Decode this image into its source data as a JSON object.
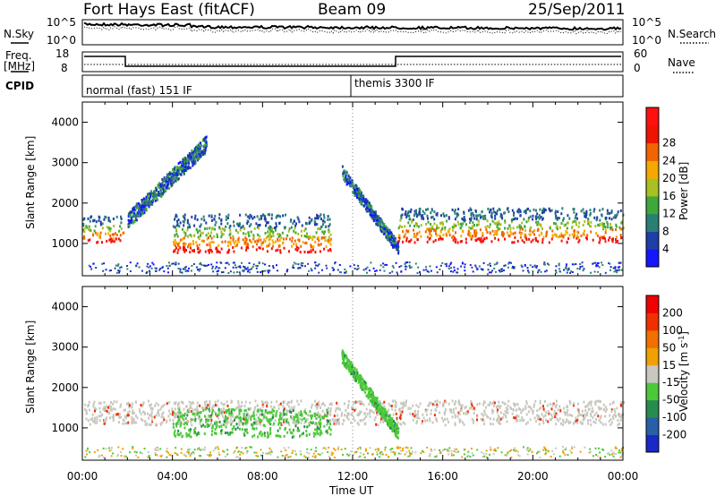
{
  "header": {
    "title": "Fort Hays East (fitACF)",
    "beam": "Beam 09",
    "date": "25/Sep/2011"
  },
  "top_panels": {
    "nsky_label": "N.Sky",
    "nsky_ticks": [
      "10^5",
      "10^0"
    ],
    "nsearch_label": "N.Search",
    "nsearch_ticks": [
      "10^5",
      "10^0"
    ],
    "freq_label": "Freq.",
    "freq_unit": "[MHz]",
    "freq_ticks": [
      "18",
      "8"
    ],
    "nave_label": "Nave",
    "nave_ticks": [
      "60",
      "0"
    ],
    "cpid_label": "CPID",
    "cpid_segments": [
      {
        "start_hour": 0,
        "label": "normal (fast) 151 IF"
      },
      {
        "start_hour": 12,
        "label": "themis 3300 IF"
      }
    ]
  },
  "chart_data": [
    {
      "type": "heatmap",
      "ylabel": "Slant Range [km]",
      "xlim": [
        0,
        24
      ],
      "ylim": [
        200,
        4500
      ],
      "yticks": [
        "1000",
        "2000",
        "3000",
        "4000"
      ],
      "colorbar": {
        "label": "Power [dB]",
        "ticks": [
          "4",
          "8",
          "12",
          "16",
          "20",
          "24",
          "28"
        ],
        "colors": [
          "#1515ff",
          "#1e3ea8",
          "#2a7f74",
          "#3ea83a",
          "#a8c020",
          "#f5a800",
          "#f26400",
          "#ee1400",
          "#ff1010"
        ]
      },
      "features": [
        {
          "name": "early echo band",
          "x": [
            0.0,
            1.8
          ],
          "y": [
            1050,
            1700
          ]
        },
        {
          "name": "rising band",
          "x": [
            2.0,
            5.5
          ],
          "y": [
            1600,
            3500
          ]
        },
        {
          "name": "main band",
          "x": [
            4.0,
            11.0
          ],
          "y": [
            800,
            1750
          ]
        },
        {
          "name": "diagonal streak",
          "x": [
            11.5,
            14.0
          ],
          "y": [
            900,
            2800
          ]
        },
        {
          "name": "late band",
          "x": [
            14.0,
            24.0
          ],
          "y": [
            1050,
            1900
          ]
        }
      ]
    },
    {
      "type": "heatmap",
      "xlabel": "Time UT",
      "ylabel": "Slant Range [km]",
      "xlim": [
        0,
        24
      ],
      "ylim": [
        200,
        4500
      ],
      "xticks": [
        "00:00",
        "04:00",
        "08:00",
        "12:00",
        "16:00",
        "20:00",
        "00:00"
      ],
      "yticks": [
        "1000",
        "2000",
        "3000",
        "4000"
      ],
      "colorbar": {
        "label": "Velocity [m s",
        "label_sup": "-1",
        "label_end": "]",
        "ticks": [
          "200",
          "100",
          "50",
          "15",
          "-15",
          "-50",
          "-100",
          "-200"
        ],
        "colors": [
          "#1a28c8",
          "#2860a8",
          "#288c50",
          "#4cc83a",
          "#c8c8c0",
          "#f0a000",
          "#f07000",
          "#f03000",
          "#f00000"
        ]
      },
      "features": [
        {
          "name": "ground scatter band",
          "x": [
            0.0,
            24.0
          ],
          "y": [
            1100,
            1700
          ]
        },
        {
          "name": "green patch",
          "x": [
            4.0,
            11.0
          ],
          "y": [
            800,
            1500
          ]
        },
        {
          "name": "green streak",
          "x": [
            11.5,
            14.0
          ],
          "y": [
            900,
            2800
          ]
        }
      ]
    }
  ]
}
